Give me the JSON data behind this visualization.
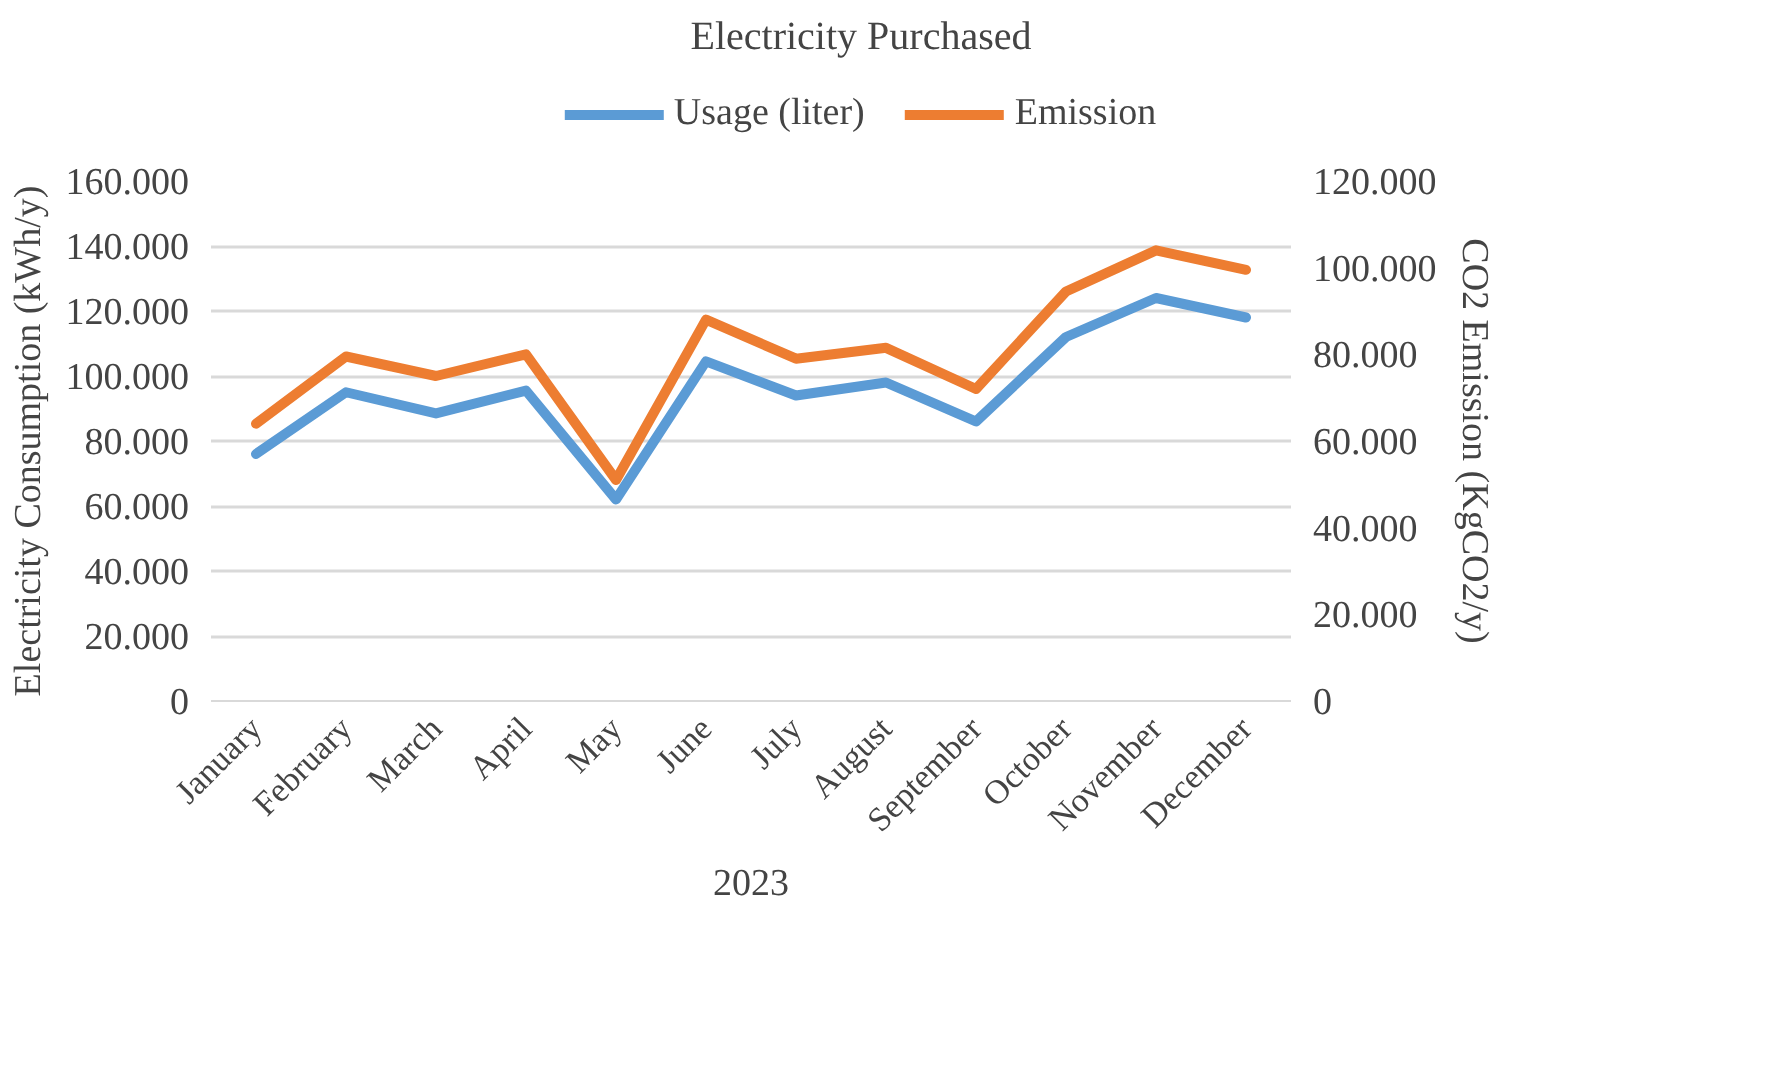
{
  "chart_data": {
    "type": "line",
    "title": "Electricity Purchased",
    "xlabel": "2023",
    "ylabel": "Electricity Consumption (kWh/y)",
    "y2label": "CO2 Emission (KgCO2/y)",
    "categories": [
      "January",
      "February",
      "March",
      "April",
      "May",
      "June",
      "July",
      "August",
      "September",
      "October",
      "November",
      "December"
    ],
    "series": [
      {
        "name": "Usage (liter)",
        "color": "#5b9bd5",
        "values": [
          76000,
          95000,
          88500,
          95500,
          62000,
          104500,
          94000,
          98000,
          86000,
          112000,
          124000,
          118000
        ]
      },
      {
        "name": "Emission",
        "color": "#ed7d31",
        "axis": "y2",
        "values": [
          64000,
          79500,
          75000,
          80000,
          51000,
          88000,
          79000,
          81500,
          72000,
          94500,
          104000,
          99500
        ]
      }
    ],
    "ylim": [
      0,
      160000
    ],
    "yticks": [
      {
        "value": 0,
        "label": "0"
      },
      {
        "value": 20000,
        "label": "20.000"
      },
      {
        "value": 40000,
        "label": "40.000"
      },
      {
        "value": 60000,
        "label": "60.000"
      },
      {
        "value": 80000,
        "label": "80.000"
      },
      {
        "value": 100000,
        "label": "100.000"
      },
      {
        "value": 120000,
        "label": "120.000"
      },
      {
        "value": 140000,
        "label": "140.000"
      },
      {
        "value": 160000,
        "label": "160.000"
      }
    ],
    "y2lim": [
      0,
      120000
    ],
    "y2ticks": [
      {
        "value": 0,
        "label": "0"
      },
      {
        "value": 20000,
        "label": "20.000"
      },
      {
        "value": 40000,
        "label": "40.000"
      },
      {
        "value": 60000,
        "label": "60.000"
      },
      {
        "value": 80000,
        "label": "80.000"
      },
      {
        "value": 100000,
        "label": "100.000"
      },
      {
        "value": 120000,
        "label": "120.000"
      }
    ],
    "grid": "y",
    "legend": "top",
    "line_style": "solid"
  }
}
